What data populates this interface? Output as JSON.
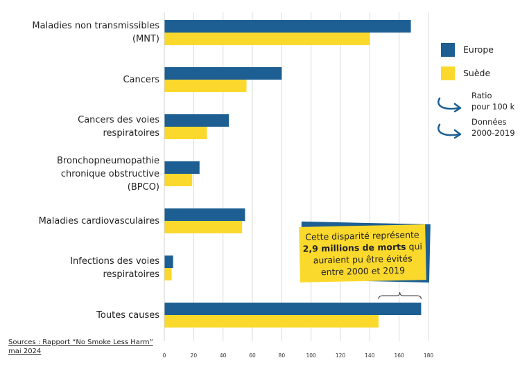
{
  "chart_data": {
    "type": "bar",
    "orientation": "horizontal",
    "categories": [
      [
        "Maladies non transmissibles",
        "(MNT)"
      ],
      [
        "Cancers"
      ],
      [
        "Cancers des voies",
        "respiratoires"
      ],
      [
        "Bronchopneumopathie",
        "chronique obstructive",
        "(BPCO)"
      ],
      [
        "Maladies cardiovasculaires"
      ],
      [
        "Infections des voies",
        "respiratoires"
      ],
      [
        "Toutes causes"
      ]
    ],
    "series": [
      {
        "name": "Europe",
        "color": "#1d5f92",
        "values": [
          168,
          80,
          44,
          24,
          55,
          6,
          175
        ]
      },
      {
        "name": "Suède",
        "color": "#fbd92c",
        "values": [
          140,
          56,
          29,
          19,
          53,
          5,
          146
        ]
      }
    ],
    "x_ticks": [
      "0",
      "20",
      "40",
      "60",
      "80",
      "100",
      "120",
      "140",
      "160",
      "180"
    ],
    "xlim": [
      0,
      180
    ],
    "grid": true
  },
  "legend": {
    "items": [
      {
        "label": "Europe",
        "color": "#1d5f92"
      },
      {
        "label": "Suède",
        "color": "#fbd92c"
      }
    ],
    "notes": [
      {
        "line1": "Ratio",
        "line2": "pour 100 k",
        "icon": "curved-arrow-icon"
      },
      {
        "line1": "Données",
        "line2": "2000-2019",
        "icon": "curved-arrow-icon"
      }
    ]
  },
  "callout": {
    "line1": "Cette disparité représente",
    "bold": "2,9 millions de morts",
    "rest2": " qui",
    "line3": "auraient pu être évités",
    "line4": "entre 2000 et 2019"
  },
  "source": {
    "line1": "Sources : Rapport “No Smoke Less Harm”",
    "line2": "mai 2024"
  }
}
